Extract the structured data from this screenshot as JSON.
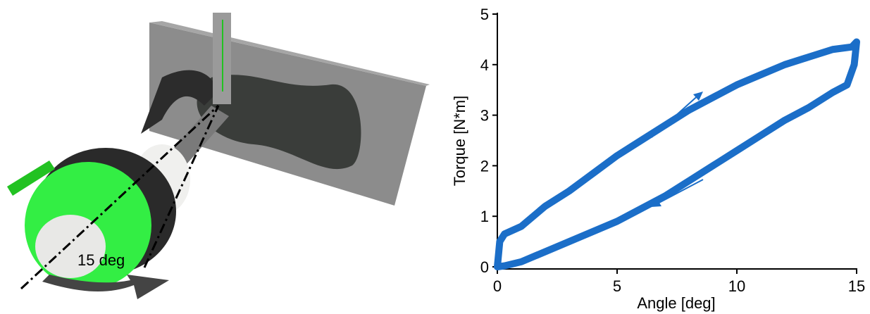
{
  "illustration": {
    "label": "15 deg"
  },
  "chart_data": {
    "type": "line",
    "xlabel": "Angle [deg]",
    "ylabel": "Torque [N*m]",
    "xlim": [
      0,
      15
    ],
    "ylim": [
      0,
      5
    ],
    "xticks": [
      0,
      5,
      10,
      15
    ],
    "yticks": [
      0,
      1,
      2,
      3,
      4,
      5
    ],
    "series": [
      {
        "color": "#1b6ec8",
        "x": [
          0,
          0.1,
          0.3,
          1,
          2,
          3,
          4,
          5,
          6,
          7,
          8,
          9,
          10,
          11,
          12,
          13,
          14,
          14.8,
          15,
          14.9,
          14.6,
          14,
          13,
          12,
          11,
          10,
          9,
          8,
          7,
          6,
          5,
          4,
          3,
          2,
          1,
          0.3,
          0
        ],
        "values": [
          0,
          0.5,
          0.65,
          0.8,
          1.2,
          1.5,
          1.85,
          2.2,
          2.5,
          2.8,
          3.1,
          3.35,
          3.6,
          3.8,
          4.0,
          4.15,
          4.3,
          4.35,
          4.45,
          4.0,
          3.6,
          3.45,
          3.15,
          2.9,
          2.6,
          2.3,
          2.0,
          1.7,
          1.4,
          1.15,
          0.9,
          0.7,
          0.5,
          0.3,
          0.1,
          0.02,
          0
        ]
      }
    ]
  }
}
